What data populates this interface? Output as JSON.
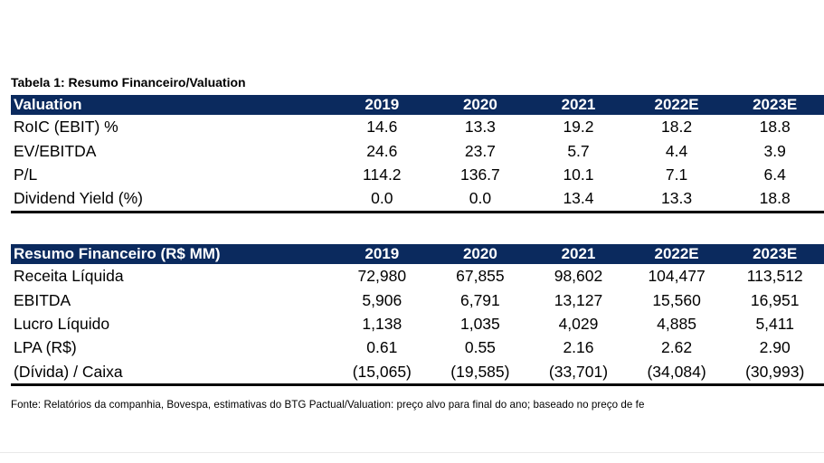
{
  "table_title": "Tabela 1: Resumo Financeiro/Valuation",
  "valuation": {
    "header": "Valuation",
    "years": [
      "2019",
      "2020",
      "2021",
      "2022E",
      "2023E"
    ],
    "rows": [
      {
        "label": "RoIC (EBIT) %",
        "values": [
          "14.6",
          "13.3",
          "19.2",
          "18.2",
          "18.8"
        ]
      },
      {
        "label": "EV/EBITDA",
        "values": [
          "24.6",
          "23.7",
          "5.7",
          "4.4",
          "3.9"
        ]
      },
      {
        "label": "P/L",
        "values": [
          "114.2",
          "136.7",
          "10.1",
          "7.1",
          "6.4"
        ]
      },
      {
        "label": "Dividend Yield (%)",
        "values": [
          "0.0",
          "0.0",
          "13.4",
          "13.3",
          "18.8"
        ]
      }
    ]
  },
  "financial": {
    "header": "Resumo Financeiro (R$ MM)",
    "years": [
      "2019",
      "2020",
      "2021",
      "2022E",
      "2023E"
    ],
    "rows": [
      {
        "label": "Receita Líquida",
        "values": [
          "72,980",
          "67,855",
          "98,602",
          "104,477",
          "113,512"
        ]
      },
      {
        "label": "EBITDA",
        "values": [
          "5,906",
          "6,791",
          "13,127",
          "15,560",
          "16,951"
        ]
      },
      {
        "label": "Lucro Líquido",
        "values": [
          "1,138",
          "1,035",
          "4,029",
          "4,885",
          "5,411"
        ]
      },
      {
        "label": "LPA (R$)",
        "values": [
          "0.61",
          "0.55",
          "2.16",
          "2.62",
          "2.90"
        ]
      },
      {
        "label": "(Dívida) / Caixa",
        "values": [
          "(15,065)",
          "(19,585)",
          "(33,701)",
          "(34,084)",
          "(30,993)"
        ]
      }
    ]
  },
  "footer": "Fonte: Relatórios da companhia, Bovespa, estimativas do BTG Pactual/Valuation: preço alvo para final do ano; baseado no preço de fe"
}
